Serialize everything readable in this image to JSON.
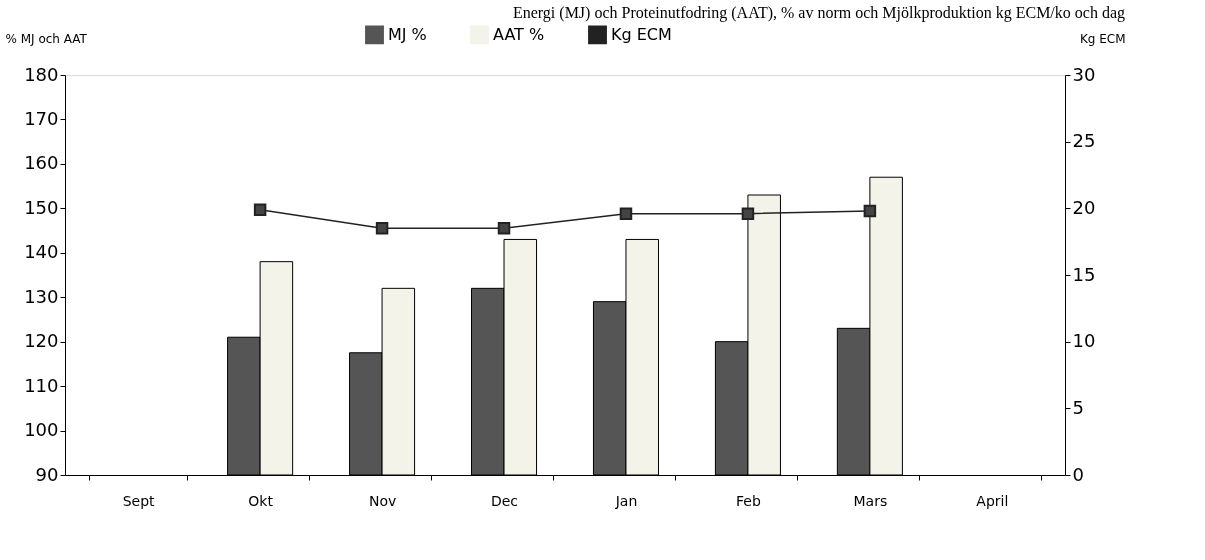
{
  "chart_data": {
    "type": "bar",
    "title": "Energi (MJ) och Proteinutfodring (AAT), % av norm och Mjölkproduktion kg ECM/ko och dag",
    "categories": [
      "Sept",
      "Okt",
      "Nov",
      "Dec",
      "Jan",
      "Feb",
      "Mars",
      "April"
    ],
    "series": [
      {
        "name": "MJ %",
        "color": "#555555",
        "values": [
          null,
          121,
          117.5,
          132,
          129,
          120,
          123,
          null
        ]
      },
      {
        "name": "AAT %",
        "color": "#f3f3ea",
        "values": [
          null,
          138,
          132,
          143,
          143,
          153,
          157,
          null
        ]
      },
      {
        "name": "Kg ECM",
        "type": "line",
        "axis": "y2",
        "color": "#222222",
        "values": [
          null,
          19.9,
          18.5,
          18.5,
          19.6,
          19.6,
          19.8,
          null
        ]
      }
    ],
    "ylabel": "% MJ och AAT",
    "y2label": "Kg ECM",
    "ylim": [
      90,
      180
    ],
    "yticks": [
      90,
      100,
      110,
      120,
      130,
      140,
      150,
      160,
      170,
      180
    ],
    "y2lim": [
      0,
      30
    ],
    "y2ticks": [
      0,
      5,
      10,
      15,
      20,
      25,
      30
    ],
    "grid": false,
    "legend": "top",
    "marker": "square",
    "line_style": "solid"
  }
}
